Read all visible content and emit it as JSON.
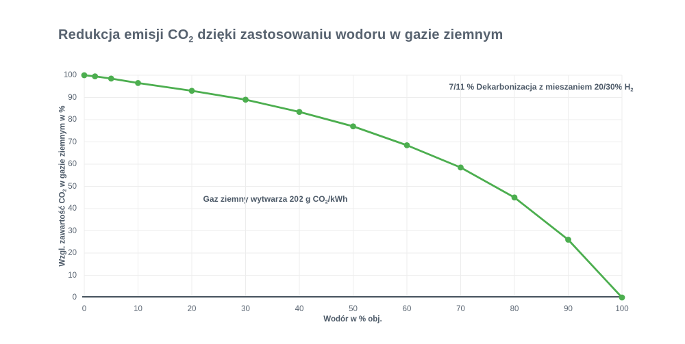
{
  "title": {
    "pre": "Redukcja emisji CO",
    "sub": "2",
    "post": " dzięki zastosowaniu wodoru w gazie ziemnym"
  },
  "annotations": {
    "decarbonization": {
      "pre": "7/11 % Dekarbonizacja z mieszaniem 20/30% H",
      "sub": "2",
      "post": ""
    },
    "natural_gas": {
      "pre": "Gaz ziemny wytwarza 202 g CO",
      "sub": "2",
      "post": "/kWh"
    }
  },
  "axes": {
    "x_label": "Wodór w % obj.",
    "y_label": {
      "pre": "Wzgl. zawartość CO",
      "sub": "2",
      "post": " w gazie ziemnym w %"
    }
  },
  "colors": {
    "accent_green": "#4cae4f",
    "title_text": "#57626f",
    "label_text": "#4d5a68",
    "tick_text": "#5a6572",
    "gridline": "#ededed",
    "axis_line": "#47545f",
    "background": "#ffffff"
  },
  "chart_data": {
    "type": "line",
    "title": "Redukcja emisji CO2 dzięki zastosowaniu wodoru w gazie ziemnym",
    "x": [
      0,
      2,
      5,
      10,
      20,
      30,
      40,
      50,
      60,
      70,
      80,
      90,
      100
    ],
    "y": [
      100,
      99.5,
      98.5,
      96.5,
      93,
      89,
      83.5,
      77,
      68.5,
      58.5,
      45,
      26,
      0
    ],
    "series_name": "Wzgl. zawartość CO2",
    "xlabel": "Wodór w % obj.",
    "ylabel": "Wzgl. zawartość CO2 w gazie ziemnym w %",
    "xlim": [
      0,
      100
    ],
    "ylim": [
      0,
      100
    ],
    "xticks": [
      0,
      10,
      20,
      30,
      40,
      50,
      60,
      70,
      80,
      90,
      100
    ],
    "yticks": [
      0,
      10,
      20,
      30,
      40,
      50,
      60,
      70,
      80,
      90,
      100
    ],
    "grid": true,
    "legend": false,
    "marker": "circle",
    "line_color": "#4cae4f",
    "annotations": [
      {
        "text": "7/11 % Dekarbonizacja z mieszaniem 20/30% H2",
        "x": 85,
        "y": 95
      },
      {
        "text": "Gaz ziemny wytwarza 202 g CO2/kWh",
        "x": 35.5,
        "y": 44.5
      }
    ]
  }
}
